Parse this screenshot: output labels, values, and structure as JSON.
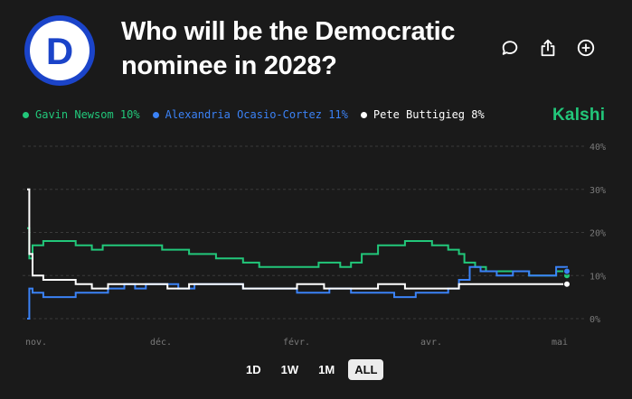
{
  "market": {
    "title_line1": "Who will be the Democratic",
    "title_line2": "nominee in 2028?",
    "brand": "Kalshi",
    "logo_letter": "D",
    "logo_color": "#1b44c9"
  },
  "legend": [
    {
      "label": "Gavin Newsom 10%",
      "color": "#22c77a"
    },
    {
      "label": "Alexandria Ocasio-Cortez 11%",
      "color": "#3b82f6"
    },
    {
      "label": "Pete Buttigieg 8%",
      "color": "#ffffff"
    }
  ],
  "ranges": [
    {
      "label": "1D",
      "active": false
    },
    {
      "label": "1W",
      "active": false
    },
    {
      "label": "1M",
      "active": false
    },
    {
      "label": "ALL",
      "active": true
    }
  ],
  "actions": {
    "comment_icon": "comment-icon",
    "share_icon": "share-icon",
    "add_icon": "plus-circle-icon"
  },
  "chart_data": {
    "type": "line",
    "x_ticks": [
      "nov.",
      "déc.",
      "févr.",
      "avr.",
      "mai"
    ],
    "y_ticks": [
      "0%",
      "10%",
      "20%",
      "30%",
      "40%"
    ],
    "ylim": [
      0,
      40
    ],
    "grid": "horizontal dashed",
    "x_range": [
      0,
      100
    ],
    "series": [
      {
        "name": "Gavin Newsom",
        "color": "#22c77a",
        "x": [
          0,
          0.4,
          1,
          3,
          6,
          9,
          12,
          14,
          18,
          22,
          25,
          30,
          35,
          40,
          43,
          46,
          50,
          54,
          58,
          60,
          62,
          65,
          70,
          75,
          78,
          80,
          81,
          83,
          85,
          88,
          90,
          93,
          95,
          97,
          98,
          100
        ],
        "y": [
          21,
          14,
          17,
          18,
          18,
          17,
          16,
          17,
          17,
          17,
          16,
          15,
          14,
          13,
          12,
          12,
          12,
          13,
          12,
          13,
          15,
          17,
          18,
          17,
          16,
          15,
          13,
          12,
          11,
          11,
          11,
          10,
          10,
          10,
          11,
          10
        ]
      },
      {
        "name": "Alexandria Ocasio-Cortez",
        "color": "#3b82f6",
        "x": [
          0,
          0.4,
          1,
          3,
          6,
          9,
          12,
          15,
          18,
          20,
          22,
          25,
          28,
          31,
          35,
          40,
          45,
          50,
          53,
          56,
          60,
          64,
          68,
          72,
          75,
          78,
          80,
          82,
          84,
          87,
          90,
          93,
          96,
          98,
          100
        ],
        "y": [
          0,
          7,
          6,
          5,
          5,
          6,
          6,
          7,
          8,
          7,
          8,
          8,
          7,
          8,
          8,
          7,
          7,
          6,
          6,
          7,
          6,
          6,
          5,
          6,
          6,
          7,
          9,
          12,
          11,
          10,
          11,
          10,
          10,
          12,
          11
        ]
      },
      {
        "name": "Pete Buttigieg",
        "color": "#ffffff",
        "x": [
          0,
          0.4,
          1,
          3,
          6,
          9,
          12,
          15,
          18,
          22,
          26,
          30,
          35,
          40,
          45,
          50,
          55,
          60,
          65,
          70,
          75,
          80,
          85,
          90,
          95,
          100
        ],
        "y": [
          30,
          15,
          10,
          9,
          9,
          8,
          7,
          8,
          8,
          8,
          7,
          8,
          8,
          7,
          7,
          8,
          7,
          7,
          8,
          7,
          7,
          8,
          8,
          8,
          8,
          8
        ]
      }
    ]
  }
}
